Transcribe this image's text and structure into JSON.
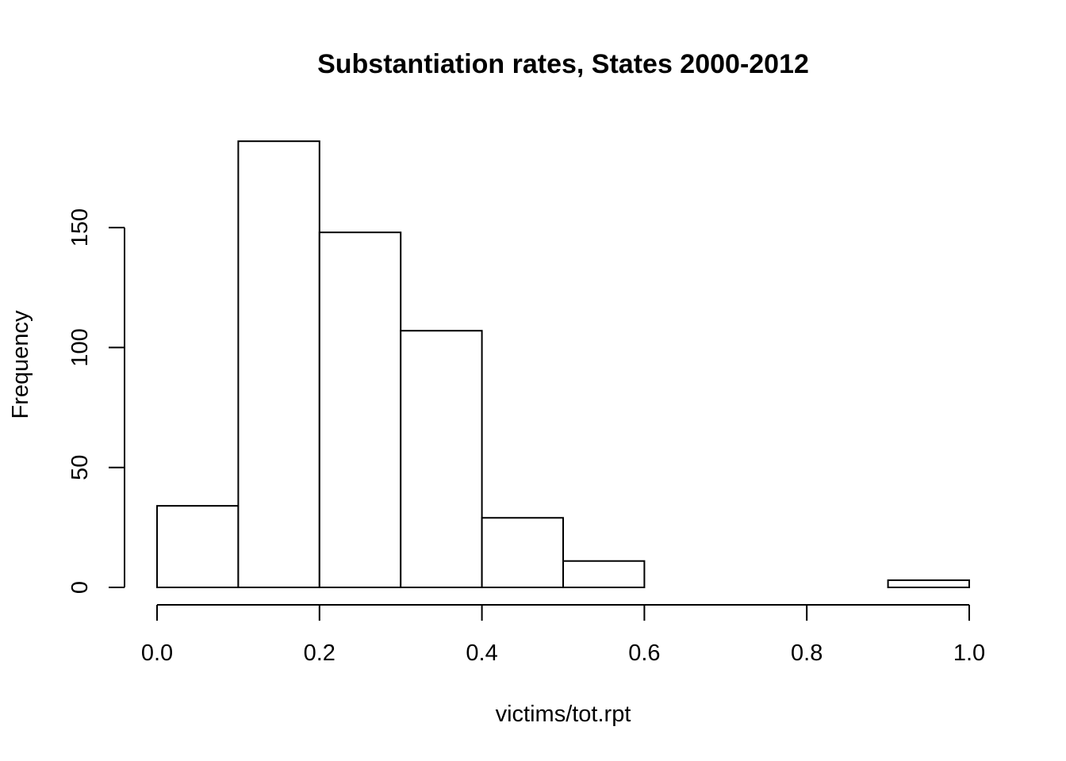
{
  "chart_data": {
    "type": "bar",
    "title": "Substantiation rates, States 2000-2012",
    "xlabel": "victims/tot.rpt",
    "ylabel": "Frequency",
    "bins": [
      {
        "from": 0.0,
        "to": 0.1,
        "count": 34
      },
      {
        "from": 0.1,
        "to": 0.2,
        "count": 186
      },
      {
        "from": 0.2,
        "to": 0.3,
        "count": 148
      },
      {
        "from": 0.3,
        "to": 0.4,
        "count": 107
      },
      {
        "from": 0.4,
        "to": 0.5,
        "count": 29
      },
      {
        "from": 0.5,
        "to": 0.6,
        "count": 11
      },
      {
        "from": 0.6,
        "to": 0.7,
        "count": 0
      },
      {
        "from": 0.7,
        "to": 0.8,
        "count": 0
      },
      {
        "from": 0.8,
        "to": 0.9,
        "count": 0
      },
      {
        "from": 0.9,
        "to": 1.0,
        "count": 3
      }
    ],
    "xlim": [
      0.0,
      1.0
    ],
    "ylim": [
      0,
      186
    ],
    "xticks": [
      "0.0",
      "0.2",
      "0.4",
      "0.6",
      "0.8",
      "1.0"
    ],
    "yticks": [
      "0",
      "50",
      "100",
      "150"
    ],
    "grid": false,
    "legend": "none"
  }
}
